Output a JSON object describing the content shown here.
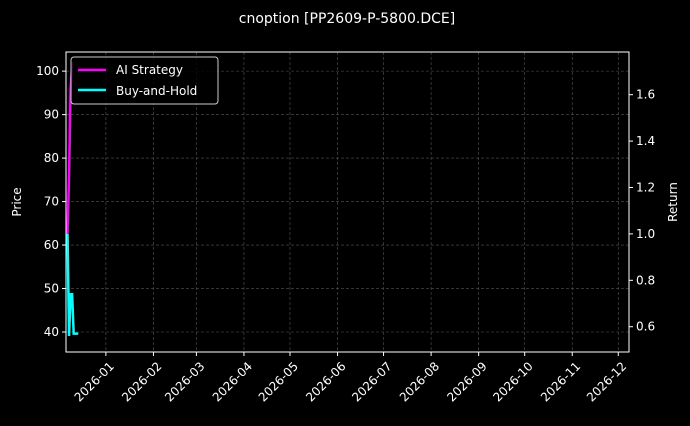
{
  "chart_data": {
    "type": "line",
    "title": "cnoption [PP2609-P-5800.DCE]",
    "ylabel": "Price",
    "y2label": "Return",
    "xlim": [
      "2025-12-06",
      "2026-12-08"
    ],
    "ylim": [
      35.4,
      104.4
    ],
    "y2lim": [
      0.491,
      1.784
    ],
    "xticks": [
      "2026-01",
      "2026-02",
      "2026-03",
      "2026-04",
      "2026-05",
      "2026-06",
      "2026-07",
      "2026-08",
      "2026-09",
      "2026-10",
      "2026-11",
      "2026-12"
    ],
    "yticks": [
      40,
      50,
      60,
      70,
      80,
      90,
      100
    ],
    "y2ticks": [
      "0.6",
      "0.8",
      "1.0",
      "1.2",
      "1.4",
      "1.6"
    ],
    "grid": true,
    "legend": "top-left",
    "series": [
      {
        "name": "AI Strategy",
        "color": "#ff00ff",
        "axis": "right",
        "x": [
          "2025-12-07",
          "2025-12-08",
          "2025-12-09",
          "2025-12-10"
        ],
        "y": [
          1.0,
          1.25,
          1.62,
          1.74
        ]
      },
      {
        "name": "Buy-and-Hold",
        "color": "#00ffff",
        "axis": "right",
        "x": [
          "2025-12-07",
          "2025-12-08",
          "2025-12-09",
          "2025-12-10",
          "2025-12-11",
          "2025-12-12",
          "2025-12-14"
        ],
        "y": [
          1.0,
          0.56,
          0.74,
          0.74,
          0.57,
          0.57,
          0.57
        ]
      }
    ]
  }
}
